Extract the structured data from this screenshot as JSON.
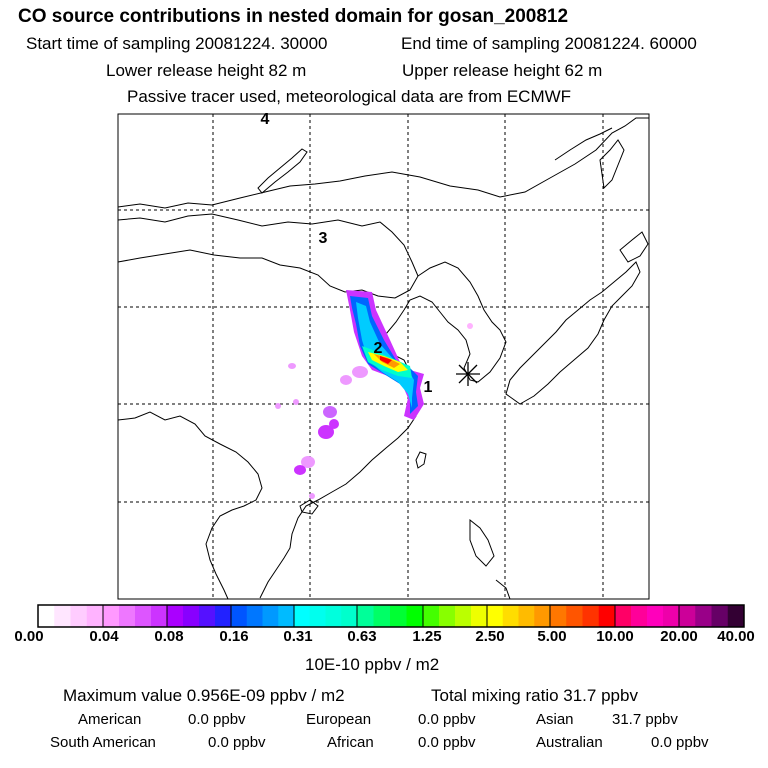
{
  "header": {
    "title": "CO  source contributions in nested domain for gosan_200812",
    "start_label": "Start time of sampling 20081224. 30000",
    "end_label": "End time of sampling 20081224. 60000",
    "lower_label": "Lower release height   82 m",
    "upper_label": "Upper release height   62 m",
    "tracer_note": "Passive tracer used, meteorological data are from ECMWF"
  },
  "map": {
    "region_labels": [
      "4",
      "3",
      "2",
      "1"
    ],
    "receptor_marker": "asterisk",
    "plume_colors": [
      "#ff00ff",
      "#ff66ff",
      "#cc33ff",
      "#0066ff",
      "#00ccff",
      "#00ffcc",
      "#00ff66",
      "#ffff00",
      "#ff9900",
      "#ff0000"
    ]
  },
  "colorbar": {
    "ticks": [
      "0.00",
      "0.04",
      "0.08",
      "0.16",
      "0.31",
      "0.63",
      "1.25",
      "2.50",
      "5.00",
      "10.00",
      "20.00",
      "40.00"
    ],
    "colors": [
      [
        "#ffffff",
        "#ffe6ff",
        "#ffccff",
        "#ffb3ff"
      ],
      [
        "#ff99ff",
        "#ee77ff",
        "#dd55ff",
        "#cc33ff"
      ],
      [
        "#aa00ff",
        "#8800ff",
        "#5511ff",
        "#2222ff"
      ],
      [
        "#0055ff",
        "#0077ff",
        "#0099ff",
        "#00bbff"
      ],
      [
        "#00ffff",
        "#00ffee",
        "#00ffdd",
        "#00ffcc"
      ],
      [
        "#00ff99",
        "#00ff66",
        "#00ff33",
        "#00ff00"
      ],
      [
        "#44ff00",
        "#88ff00",
        "#bbff00",
        "#eeff00"
      ],
      [
        "#ffff00",
        "#ffdd00",
        "#ffbb00",
        "#ff9900"
      ],
      [
        "#ff7700",
        "#ff5500",
        "#ff3300",
        "#ff0000"
      ],
      [
        "#ff0066",
        "#ff0099",
        "#ff00bb",
        "#ee00aa"
      ],
      [
        "#cc0099",
        "#990088",
        "#660066",
        "#330033"
      ]
    ],
    "unit_label": "10E-10 ppbv / m2"
  },
  "stats": {
    "max_label": "Maximum value  0.956E-09 ppbv / m2",
    "total_label": "Total mixing ratio       31.7 ppbv",
    "american": {
      "name": "American",
      "value": "0.0 ppbv"
    },
    "european": {
      "name": "European",
      "value": "0.0 ppbv"
    },
    "asian": {
      "name": "Asian",
      "value": "31.7 ppbv"
    },
    "south_american": {
      "name": "South American",
      "value": "0.0 ppbv"
    },
    "african": {
      "name": "African",
      "value": "0.0 ppbv"
    },
    "australian": {
      "name": "Australian",
      "value": "0.0 ppbv"
    }
  }
}
